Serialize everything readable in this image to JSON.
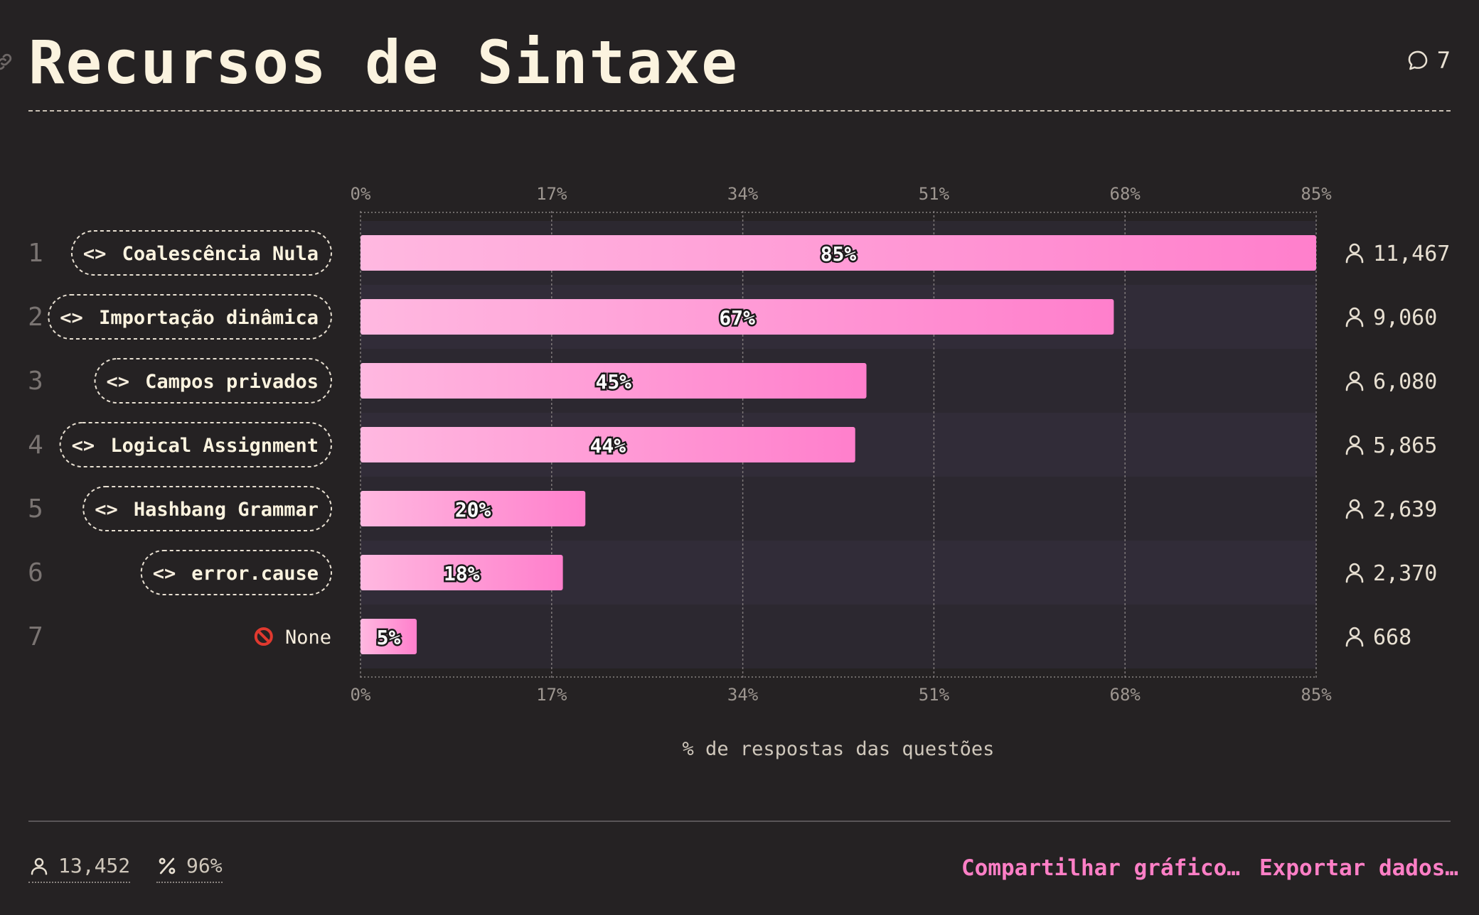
{
  "header": {
    "title": "Recursos de Sintaxe",
    "comment_count": "7"
  },
  "footer": {
    "respondents": "13,452",
    "percent": "96%",
    "share_label": "Compartilhar gráfico…",
    "export_label": "Exportar dados…"
  },
  "colors": {
    "background": "#252223",
    "bar_start": "#ffb8e0",
    "bar_end": "#ff7fcc",
    "accent": "#ff7fc6",
    "alt_row": "#312c38"
  },
  "chart_data": {
    "type": "bar",
    "orientation": "horizontal",
    "categories": [
      "Coalescência Nula",
      "Importação dinâmica",
      "Campos privados",
      "Logical Assignment",
      "Hashbang Grammar",
      "error.cause",
      "None"
    ],
    "ranks": [
      "1",
      "2",
      "3",
      "4",
      "5",
      "6",
      "7"
    ],
    "category_icons": [
      "code-icon",
      "code-icon",
      "code-icon",
      "code-icon",
      "code-icon",
      "code-icon",
      "no-entry-icon"
    ],
    "values": [
      85,
      67,
      45,
      44,
      20,
      18,
      5
    ],
    "value_labels": [
      "85%",
      "67%",
      "45%",
      "44%",
      "20%",
      "18%",
      "5%"
    ],
    "counts": [
      "11,467",
      "9,060",
      "6,080",
      "5,865",
      "2,639",
      "2,370",
      "668"
    ],
    "ticks": [
      0,
      17,
      34,
      51,
      68,
      85
    ],
    "tick_labels": [
      "0%",
      "17%",
      "34%",
      "51%",
      "68%",
      "85%"
    ],
    "xlim": [
      0,
      85
    ],
    "xlabel": "% de respostas das questões",
    "grid": true
  }
}
